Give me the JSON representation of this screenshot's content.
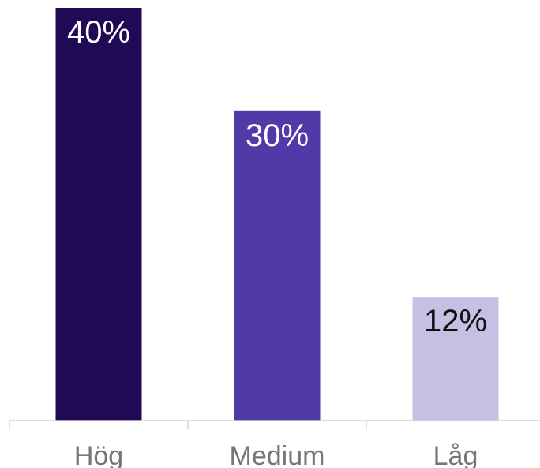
{
  "chart_data": {
    "type": "bar",
    "categories": [
      "Hög",
      "Medium",
      "Låg"
    ],
    "values": [
      40,
      30,
      12
    ],
    "value_labels": [
      "40%",
      "30%",
      "12%"
    ],
    "title": "",
    "xlabel": "",
    "ylabel": "",
    "ylim": [
      0,
      40
    ],
    "grid": false,
    "legend": "none",
    "colors": {
      "bars": [
        "#200a55",
        "#5239a8",
        "#c8c0e4"
      ],
      "value_text": [
        "#ffffff",
        "#ffffff",
        "#111111"
      ],
      "axis": "#d4d4d4",
      "category_text": "#767676"
    }
  }
}
